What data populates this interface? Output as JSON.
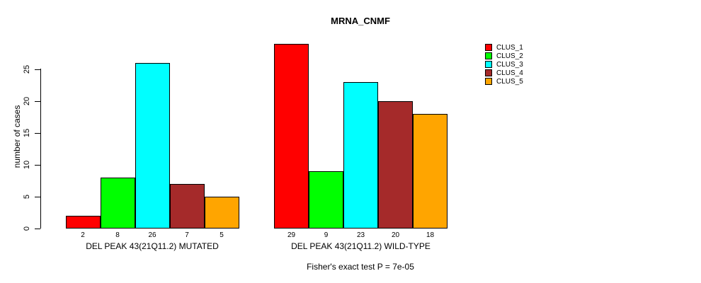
{
  "title": "MRNA_CNMF",
  "ylabel": "number of cases",
  "footer": "Fisher's exact test P = 7e-05",
  "chart_data": {
    "type": "bar",
    "title": "MRNA_CNMF",
    "ylabel": "number of cases",
    "xlabel": "",
    "ylim": [
      0,
      29
    ],
    "yticks": [
      0,
      5,
      10,
      15,
      20,
      25
    ],
    "grid": false,
    "legend_position": "right",
    "categories": [
      "DEL PEAK 43(21Q11.2) MUTATED",
      "DEL PEAK 43(21Q11.2) WILD-TYPE"
    ],
    "groups": [
      {
        "label": "DEL PEAK 43(21Q11.2) MUTATED",
        "values": [
          2,
          8,
          26,
          7,
          5
        ]
      },
      {
        "label": "DEL PEAK 43(21Q11.2) WILD-TYPE",
        "values": [
          29,
          9,
          23,
          20,
          18
        ]
      }
    ],
    "series": [
      {
        "name": "CLUS_1",
        "color": "#FF0000",
        "values": [
          2,
          29
        ]
      },
      {
        "name": "CLUS_2",
        "color": "#00FF00",
        "values": [
          8,
          9
        ]
      },
      {
        "name": "CLUS_3",
        "color": "#00FFFF",
        "values": [
          26,
          23
        ]
      },
      {
        "name": "CLUS_4",
        "color": "#A52A2A",
        "values": [
          7,
          20
        ]
      },
      {
        "name": "CLUS_5",
        "color": "#FFA500",
        "values": [
          5,
          18
        ]
      }
    ],
    "annotation": "Fisher's exact test P = 7e-05"
  },
  "legend": {
    "items": [
      {
        "label": "CLUS_1",
        "color": "#FF0000"
      },
      {
        "label": "CLUS_2",
        "color": "#00FF00"
      },
      {
        "label": "CLUS_3",
        "color": "#00FFFF"
      },
      {
        "label": "CLUS_4",
        "color": "#A52A2A"
      },
      {
        "label": "CLUS_5",
        "color": "#FFA500"
      }
    ]
  }
}
